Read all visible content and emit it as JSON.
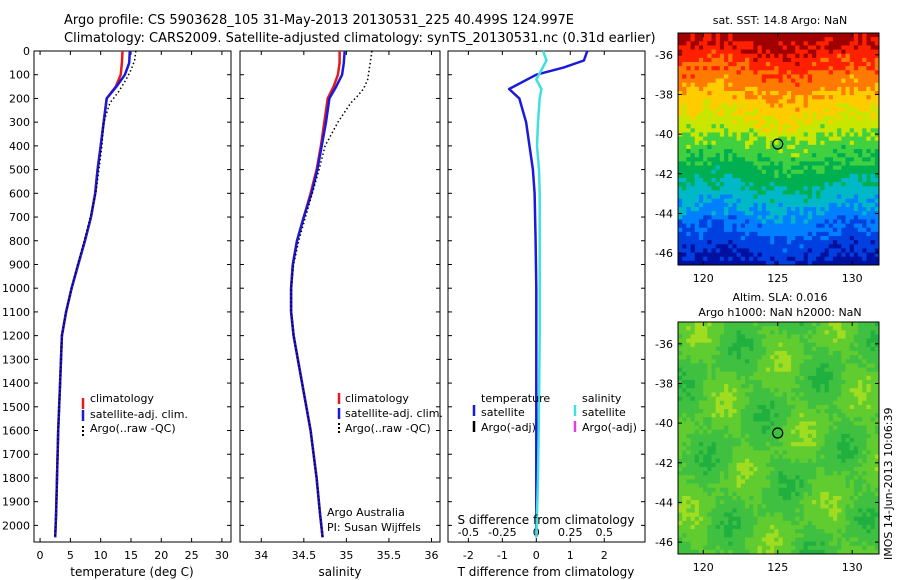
{
  "header": {
    "line1": "Argo profile: CS 5903628_105 31-May-2013 20130531_225 40.499S 124.997E",
    "line2": "Climatology: CARS2009. Satellite-adjusted climatology: synTS_20130531.nc (0.31d earlier)"
  },
  "colors": {
    "climatology": "#e41a1c",
    "satellite_adj": "#1a1adc",
    "argo": "#000000",
    "s_satellite": "#40e0e0",
    "s_argo": "#e040e0"
  },
  "stamp": "IMOS 14-Jun-2013 10:06:39",
  "chart_data": [
    {
      "id": "temperature-profile",
      "type": "line",
      "xlabel": "temperature (deg C)",
      "ylabel": "",
      "xlim": [
        -1,
        31.5
      ],
      "ylim": [
        2070,
        0
      ],
      "xticks": [
        0,
        5,
        10,
        15,
        20,
        25,
        30
      ],
      "yticks": [
        0,
        100,
        200,
        300,
        400,
        500,
        600,
        700,
        800,
        900,
        1000,
        1100,
        1200,
        1300,
        1400,
        1500,
        1600,
        1700,
        1800,
        1900,
        2000
      ],
      "legend": [
        "climatology",
        "satellite-adj. clim.",
        "Argo(..raw -QC)"
      ],
      "legend_position": "lower-right",
      "annotations": [],
      "series": [
        {
          "name": "climatology",
          "color": "#e41a1c",
          "style": "solid",
          "x": [
            13.6,
            13.5,
            13.3,
            12.5,
            11.0,
            10.5,
            10.0,
            9.5,
            9.1,
            8.4,
            7.4,
            6.3,
            5.2,
            4.3,
            3.6,
            3.3,
            3.0,
            2.8,
            2.65,
            2.5
          ],
          "y": [
            0,
            50,
            100,
            150,
            200,
            300,
            400,
            500,
            600,
            700,
            800,
            900,
            1000,
            1100,
            1200,
            1400,
            1600,
            1800,
            1950,
            2050
          ]
        },
        {
          "name": "satellite-adj. clim.",
          "color": "#1a1adc",
          "style": "solid",
          "x": [
            14.8,
            14.7,
            14.0,
            12.6,
            11.0,
            10.5,
            10.0,
            9.5,
            9.1,
            8.4,
            7.4,
            6.3,
            5.2,
            4.3,
            3.6,
            3.3,
            3.0,
            2.8,
            2.65,
            2.5
          ],
          "y": [
            0,
            50,
            100,
            150,
            200,
            300,
            400,
            500,
            600,
            700,
            800,
            900,
            1000,
            1100,
            1200,
            1400,
            1600,
            1800,
            1950,
            2050
          ]
        },
        {
          "name": "Argo(..raw -QC)",
          "color": "#000000",
          "style": "dotted",
          "x": [
            15.8,
            15.6,
            15.0,
            14.2,
            13.0,
            11.5,
            10.5,
            10.2,
            9.7,
            9.2,
            8.3,
            7.3,
            6.2,
            5.2,
            4.3,
            3.6,
            3.3,
            3.0,
            2.8,
            2.65,
            2.5
          ],
          "y": [
            0,
            40,
            80,
            120,
            170,
            220,
            300,
            400,
            500,
            600,
            700,
            800,
            900,
            1000,
            1100,
            1200,
            1400,
            1600,
            1800,
            1950,
            2050
          ]
        }
      ]
    },
    {
      "id": "salinity-profile",
      "type": "line",
      "xlabel": "salinity",
      "ylabel": "",
      "xlim": [
        33.75,
        36.1
      ],
      "ylim": [
        2070,
        0
      ],
      "xticks": [
        34,
        34.5,
        35,
        35.5,
        36
      ],
      "xtick_labels": [
        "34",
        "34.5",
        "35",
        "35.5",
        "36"
      ],
      "legend": [
        "climatology",
        "satellite-adj. clim.",
        "Argo(..raw -QC)"
      ],
      "legend_position": "lower-right",
      "annotations": [
        "Argo Australia",
        "PI: Susan Wijffels"
      ],
      "series": [
        {
          "name": "climatology",
          "color": "#e41a1c",
          "style": "solid",
          "x": [
            34.92,
            34.92,
            34.9,
            34.85,
            34.78,
            34.74,
            34.7,
            34.65,
            34.58,
            34.5,
            34.42,
            34.37,
            34.35,
            34.35,
            34.38,
            34.48,
            34.58,
            34.65,
            34.69,
            34.72
          ],
          "y": [
            0,
            50,
            100,
            150,
            200,
            300,
            400,
            500,
            600,
            700,
            800,
            900,
            1000,
            1100,
            1200,
            1400,
            1600,
            1800,
            1950,
            2050
          ]
        },
        {
          "name": "satellite-adj. clim.",
          "color": "#1a1adc",
          "style": "solid",
          "x": [
            34.98,
            34.97,
            34.95,
            34.88,
            34.8,
            34.76,
            34.71,
            34.66,
            34.59,
            34.5,
            34.42,
            34.37,
            34.35,
            34.35,
            34.38,
            34.48,
            34.58,
            34.65,
            34.69,
            34.72
          ],
          "y": [
            0,
            50,
            100,
            150,
            200,
            300,
            400,
            500,
            600,
            700,
            800,
            900,
            1000,
            1100,
            1200,
            1400,
            1600,
            1800,
            1950,
            2050
          ]
        },
        {
          "name": "Argo(..raw -QC)",
          "color": "#000000",
          "style": "dotted",
          "x": [
            35.3,
            35.28,
            35.25,
            35.2,
            35.13,
            35.05,
            34.9,
            34.75,
            34.68,
            34.6,
            34.52,
            34.44,
            34.38,
            34.35,
            34.35,
            34.38,
            34.48,
            34.58,
            34.65,
            34.69,
            34.72
          ],
          "y": [
            0,
            50,
            120,
            160,
            190,
            220,
            300,
            400,
            500,
            600,
            700,
            800,
            900,
            1000,
            1100,
            1200,
            1400,
            1600,
            1800,
            1950,
            2050
          ]
        }
      ]
    },
    {
      "id": "difference-profile",
      "type": "line",
      "xlabel": "T difference from climatology",
      "x2label": "S difference from climatology",
      "ylabel": "",
      "xlim": [
        -2.6,
        3.2
      ],
      "ylim": [
        2070,
        0
      ],
      "xticks": [
        -2,
        -1,
        0,
        1,
        2
      ],
      "x2ticks": [
        -0.5,
        -0.25,
        0,
        0.25,
        0.5
      ],
      "x2tick_labels": [
        "-0.5",
        "-0.25",
        "0",
        "0.25",
        "0.5"
      ],
      "x2_tick_positions_T": [
        -2,
        -1,
        0,
        1,
        2
      ],
      "legend_headers": [
        "temperature",
        "salinity"
      ],
      "legend": [
        "satellite",
        "Argo(-adj)",
        "satellite",
        "Argo(-adj)"
      ],
      "legend_position": "lower-center",
      "annotations": [],
      "series": [
        {
          "name": "satellite",
          "group": "temperature",
          "color": "#1a1adc",
          "style": "solid",
          "x": [
            1.5,
            1.4,
            0.8,
            0.0,
            -0.8,
            -0.5,
            -0.3,
            -0.2,
            -0.1,
            -0.05,
            -0.02,
            0.0,
            0.0,
            0.0,
            0.0,
            0.0
          ],
          "y": [
            0,
            40,
            70,
            100,
            160,
            200,
            300,
            400,
            500,
            600,
            800,
            1000,
            1200,
            1500,
            1800,
            2050
          ]
        },
        {
          "name": "satellite",
          "group": "salinity",
          "color": "#40e0e0",
          "style": "solid",
          "x": [
            0.2,
            0.3,
            0.15,
            0.0,
            0.15,
            0.1,
            0.05,
            0.02,
            0.08,
            0.1,
            0.1,
            0.1,
            0.1,
            0.08,
            0.05,
            0.0
          ],
          "y": [
            0,
            40,
            80,
            120,
            160,
            200,
            300,
            400,
            500,
            600,
            800,
            1000,
            1200,
            1500,
            1800,
            2050
          ]
        }
      ]
    },
    {
      "id": "sst-map",
      "type": "heatmap",
      "title": "sat. SST: 14.8 Argo: NaN",
      "xlim": [
        118.3,
        131.8
      ],
      "ylim": [
        -46.6,
        -34.9
      ],
      "xticks": [
        120,
        125,
        130
      ],
      "yticks": [
        -36,
        -38,
        -40,
        -42,
        -44,
        -46
      ],
      "marker": {
        "lon": 124.997,
        "lat": -40.499
      },
      "colorscale": [
        "#a00000",
        "#ff2000",
        "#ff7a00",
        "#ffcc00",
        "#c8e600",
        "#40d040",
        "#00b050",
        "#00b8c8",
        "#0080ff",
        "#0040e0",
        "#0010a0"
      ]
    },
    {
      "id": "sla-map",
      "type": "heatmap",
      "title": "Altim. SLA: 0.016",
      "subtitle": "Argo h1000: NaN h2000: NaN",
      "xlim": [
        118.3,
        131.8
      ],
      "ylim": [
        -46.6,
        -34.9
      ],
      "xticks": [
        120,
        125,
        130
      ],
      "yticks": [
        -36,
        -38,
        -40,
        -42,
        -44,
        -46
      ],
      "marker": {
        "lon": 124.997,
        "lat": -40.499
      },
      "colorscale": [
        "#20b040",
        "#40c040",
        "#60cc30",
        "#a0dc20"
      ]
    }
  ]
}
